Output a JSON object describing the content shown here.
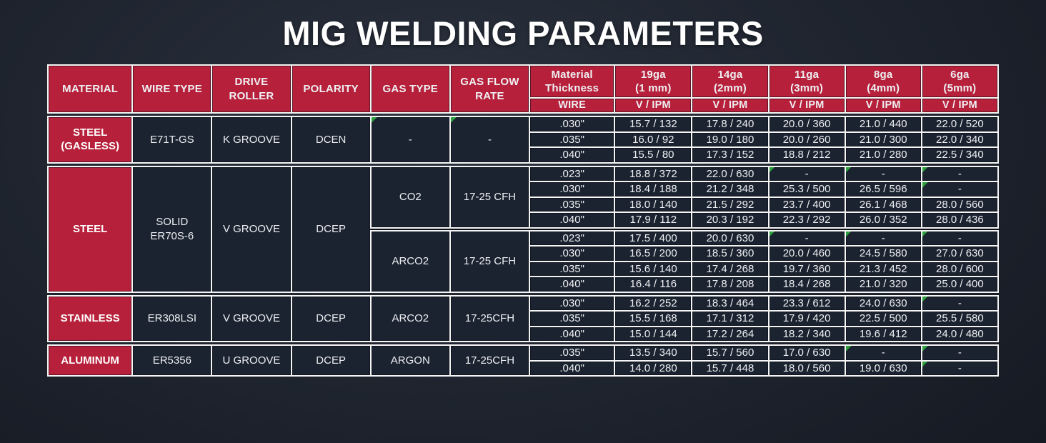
{
  "page": {
    "title": "MIG WELDING PARAMETERS",
    "colors": {
      "accent_red": "#b7203a",
      "cell_dark": "#1b2330",
      "grid_white": "#f5f5f5",
      "note_marker_green": "#2ca03c"
    }
  },
  "table": {
    "left_headers": [
      "MATERIAL",
      "WIRE TYPE",
      "DRIVE\nROLLER",
      "POLARITY",
      "GAS TYPE",
      "GAS FLOW\nRATE"
    ],
    "thickness_header": {
      "label": "Material\nThickness",
      "sub": "WIRE"
    },
    "gauge_headers": [
      {
        "label": "19ga\n(1 mm)",
        "sub": "V / IPM"
      },
      {
        "label": "14ga\n(2mm)",
        "sub": "V / IPM"
      },
      {
        "label": "11ga\n(3mm)",
        "sub": "V / IPM"
      },
      {
        "label": "8ga\n(4mm)",
        "sub": "V / IPM"
      },
      {
        "label": "6ga\n(5mm)",
        "sub": "V / IPM"
      }
    ],
    "sections": [
      {
        "material": "STEEL\n(GASLESS)",
        "wire_type": "E71T-GS",
        "drive_roller": "K GROOVE",
        "polarity": "DCEN",
        "gas_groups": [
          {
            "gas_type": "-",
            "flow_rate": "-",
            "rows": [
              {
                "wire": ".030\"",
                "values": [
                  "15.7 / 132",
                  "17.8 / 240",
                  "20.0 / 360",
                  "21.0 / 440",
                  "22.0 / 520"
                ]
              },
              {
                "wire": ".035\"",
                "values": [
                  "16.0 / 92",
                  "19.0 / 180",
                  "20.0 / 260",
                  "21.0 / 300",
                  "22.0 / 340"
                ]
              },
              {
                "wire": ".040\"",
                "values": [
                  "15.5 / 80",
                  "17.3 / 152",
                  "18.8 / 212",
                  "21.0 / 280",
                  "22.5 / 340"
                ]
              }
            ]
          }
        ]
      },
      {
        "material": "STEEL",
        "wire_type": "SOLID\nER70S-6",
        "drive_roller": "V GROOVE",
        "polarity": "DCEP",
        "gas_groups": [
          {
            "gas_type": "CO2",
            "flow_rate": "17-25 CFH",
            "rows": [
              {
                "wire": ".023\"",
                "values": [
                  "18.8 / 372",
                  "22.0 / 630",
                  "-",
                  "-",
                  "-"
                ]
              },
              {
                "wire": ".030\"",
                "values": [
                  "18.4 / 188",
                  "21.2 / 348",
                  "25.3 / 500",
                  "26.5 / 596",
                  "-"
                ]
              },
              {
                "wire": ".035\"",
                "values": [
                  "18.0 / 140",
                  "21.5 / 292",
                  "23.7 / 400",
                  "26.1 / 468",
                  "28.0 / 560"
                ]
              },
              {
                "wire": ".040\"",
                "values": [
                  "17.9 / 112",
                  "20.3 / 192",
                  "22.3 / 292",
                  "26.0 / 352",
                  "28.0 / 436"
                ]
              }
            ]
          },
          {
            "gas_type": "ARCO2",
            "flow_rate": "17-25 CFH",
            "rows": [
              {
                "wire": ".023\"",
                "values": [
                  "17.5 / 400",
                  "20.0 / 630",
                  "-",
                  "-",
                  "-"
                ]
              },
              {
                "wire": ".030\"",
                "values": [
                  "16.5 / 200",
                  "18.5 / 360",
                  "20.0 / 460",
                  "24.5 / 580",
                  "27.0 / 630"
                ]
              },
              {
                "wire": ".035\"",
                "values": [
                  "15.6 / 140",
                  "17.4 / 268",
                  "19.7 / 360",
                  "21.3 / 452",
                  "28.0 / 600"
                ]
              },
              {
                "wire": ".040\"",
                "values": [
                  "16.4 / 116",
                  "17.8 / 208",
                  "18.4 / 268",
                  "21.0 / 320",
                  "25.0 / 400"
                ]
              }
            ]
          }
        ]
      },
      {
        "material": "STAINLESS",
        "wire_type": "ER308LSI",
        "drive_roller": "V GROOVE",
        "polarity": "DCEP",
        "gas_groups": [
          {
            "gas_type": "ARCO2",
            "flow_rate": "17-25CFH",
            "rows": [
              {
                "wire": ".030\"",
                "values": [
                  "16.2 / 252",
                  "18.3 / 464",
                  "23.3 / 612",
                  "24.0 / 630",
                  "-"
                ]
              },
              {
                "wire": ".035\"",
                "values": [
                  "15.5 / 168",
                  "17.1 / 312",
                  "17.9 / 420",
                  "22.5 / 500",
                  "25.5 / 580"
                ]
              },
              {
                "wire": ".040\"",
                "values": [
                  "15.0 / 144",
                  "17.2 / 264",
                  "18.2 / 340",
                  "19.6 / 412",
                  "24.0 / 480"
                ]
              }
            ]
          }
        ]
      },
      {
        "material": "ALUMINUM",
        "wire_type": "ER5356",
        "drive_roller": "U GROOVE",
        "polarity": "DCEP",
        "gas_groups": [
          {
            "gas_type": "ARGON",
            "flow_rate": "17-25CFH",
            "rows": [
              {
                "wire": ".035\"",
                "values": [
                  "13.5 / 340",
                  "15.7 / 560",
                  "17.0 / 630",
                  "-",
                  "-"
                ]
              },
              {
                "wire": ".040\"",
                "values": [
                  "14.0 / 280",
                  "15.7 / 448",
                  "18.0 / 560",
                  "19.0 / 630",
                  "-"
                ]
              }
            ]
          }
        ]
      }
    ]
  }
}
